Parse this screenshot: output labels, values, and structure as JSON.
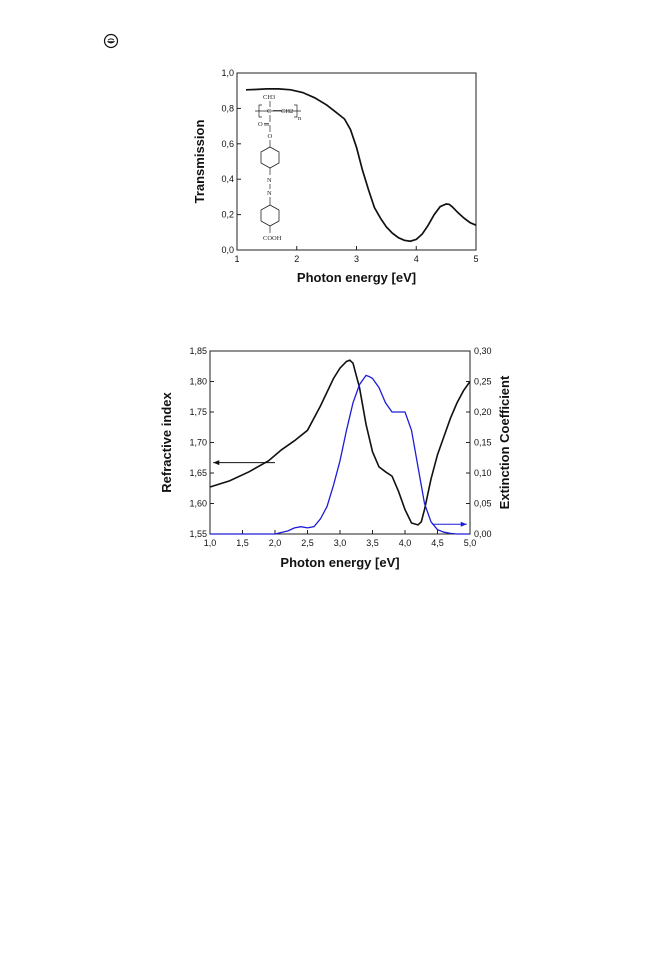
{
  "logo": {
    "icon": "emblem-icon"
  },
  "chart_data": [
    {
      "type": "line",
      "xlabel": "Photon energy [eV]",
      "ylabel": "Transmission",
      "xlim": [
        1,
        5
      ],
      "ylim": [
        0,
        1.0
      ],
      "xticks": [
        "1",
        "2",
        "3",
        "4",
        "5"
      ],
      "yticks": [
        "0,0",
        "0,2",
        "0,4",
        "0,6",
        "0,8",
        "1,0"
      ],
      "series": [
        {
          "color": "#111111",
          "x": [
            1.15,
            1.3,
            1.5,
            1.7,
            1.9,
            2.1,
            2.3,
            2.5,
            2.65,
            2.8,
            2.9,
            3.0,
            3.1,
            3.2,
            3.3,
            3.4,
            3.5,
            3.6,
            3.7,
            3.8,
            3.9,
            4.0,
            4.1,
            4.2,
            4.3,
            4.4,
            4.5,
            4.55,
            4.6,
            4.7,
            4.8,
            4.9,
            5.0
          ],
          "y": [
            0.905,
            0.907,
            0.91,
            0.91,
            0.905,
            0.89,
            0.86,
            0.82,
            0.78,
            0.74,
            0.68,
            0.58,
            0.45,
            0.34,
            0.24,
            0.18,
            0.13,
            0.095,
            0.07,
            0.055,
            0.05,
            0.06,
            0.09,
            0.14,
            0.2,
            0.245,
            0.26,
            0.258,
            0.245,
            0.21,
            0.18,
            0.155,
            0.14
          ]
        }
      ],
      "inset": {
        "image": "chemical-structure",
        "labels": [
          "CH3",
          "C",
          "CH2",
          "n",
          "O",
          "O",
          "N",
          "N",
          "COOH"
        ]
      }
    },
    {
      "type": "line",
      "xlabel": "Photon energy [eV]",
      "ylabel": "Refractive index",
      "y2label": "Extinction Coefficient",
      "xlim": [
        1.0,
        5.0
      ],
      "ylim": [
        1.55,
        1.85
      ],
      "y2lim": [
        0.0,
        0.3
      ],
      "xticks": [
        "1,0",
        "1,5",
        "2,0",
        "2,5",
        "3,0",
        "3,5",
        "4,0",
        "4,5",
        "5,0"
      ],
      "yticks": [
        "1,55",
        "1,60",
        "1,65",
        "1,70",
        "1,75",
        "1,80",
        "1,85"
      ],
      "y2ticks": [
        "0,00",
        "0,05",
        "0,10",
        "0,15",
        "0,20",
        "0,25",
        "0,30"
      ],
      "series": [
        {
          "axis": "left",
          "color": "#111111",
          "x": [
            1.0,
            1.3,
            1.6,
            1.9,
            2.1,
            2.3,
            2.5,
            2.7,
            2.9,
            3.0,
            3.1,
            3.15,
            3.2,
            3.3,
            3.4,
            3.5,
            3.6,
            3.7,
            3.8,
            3.9,
            4.0,
            4.1,
            4.2,
            4.25,
            4.3,
            4.4,
            4.5,
            4.6,
            4.7,
            4.8,
            4.9,
            5.0
          ],
          "y": [
            1.627,
            1.637,
            1.652,
            1.67,
            1.688,
            1.703,
            1.72,
            1.76,
            1.805,
            1.822,
            1.833,
            1.835,
            1.83,
            1.79,
            1.73,
            1.685,
            1.66,
            1.652,
            1.645,
            1.62,
            1.59,
            1.568,
            1.565,
            1.57,
            1.59,
            1.64,
            1.68,
            1.71,
            1.74,
            1.765,
            1.785,
            1.8
          ]
        },
        {
          "axis": "right",
          "color": "#1d1dd8",
          "x": [
            1.0,
            1.5,
            2.0,
            2.2,
            2.3,
            2.4,
            2.5,
            2.6,
            2.7,
            2.8,
            2.9,
            3.0,
            3.1,
            3.2,
            3.3,
            3.4,
            3.45,
            3.5,
            3.6,
            3.7,
            3.8,
            3.9,
            4.0,
            4.1,
            4.2,
            4.3,
            4.4,
            4.5,
            4.6,
            4.7,
            4.8,
            5.0
          ],
          "y": [
            0.0,
            0.0,
            0.0,
            0.005,
            0.01,
            0.012,
            0.01,
            0.012,
            0.025,
            0.045,
            0.08,
            0.12,
            0.17,
            0.215,
            0.245,
            0.26,
            0.258,
            0.255,
            0.24,
            0.215,
            0.2,
            0.2,
            0.2,
            0.17,
            0.11,
            0.05,
            0.02,
            0.007,
            0.003,
            0.001,
            0.0,
            0.0
          ]
        }
      ],
      "annotations": [
        {
          "type": "arrow",
          "direction": "left",
          "axis": "left",
          "from": [
            2.0,
            1.667
          ],
          "to": [
            1.05,
            1.667
          ],
          "color": "#111111"
        },
        {
          "type": "arrow",
          "direction": "right",
          "axis": "right",
          "from": [
            4.42,
            0.016
          ],
          "to": [
            4.95,
            0.016
          ],
          "color": "#1d1dd8"
        }
      ]
    }
  ]
}
